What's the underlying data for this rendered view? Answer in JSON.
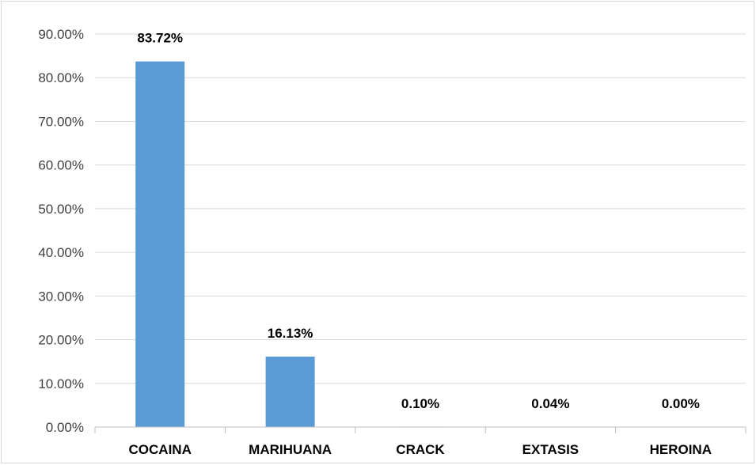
{
  "chart_data": {
    "type": "bar",
    "title": "",
    "xlabel": "",
    "ylabel": "",
    "categories": [
      "COCAINA",
      "MARIHUANA",
      "CRACK",
      "EXTASIS",
      "HEROINA"
    ],
    "values": [
      83.72,
      16.13,
      0.1,
      0.04,
      0.0
    ],
    "data_labels": [
      "83.72%",
      "16.13%",
      "0.10%",
      "0.04%",
      "0.00%"
    ],
    "ylim": [
      0,
      90
    ],
    "yticks": [
      0,
      10,
      20,
      30,
      40,
      50,
      60,
      70,
      80,
      90
    ],
    "ytick_labels": [
      "0.00%",
      "10.00%",
      "20.00%",
      "30.00%",
      "40.00%",
      "50.00%",
      "60.00%",
      "70.00%",
      "80.00%",
      "90.00%"
    ],
    "grid": true,
    "legend": "none",
    "colors": {
      "bar": "#5b9bd5",
      "grid": "#d9d9d9",
      "axis": "#bfbfbf"
    }
  }
}
